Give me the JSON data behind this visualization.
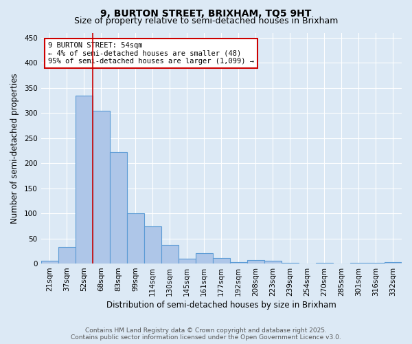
{
  "title_line1": "9, BURTON STREET, BRIXHAM, TQ5 9HT",
  "title_line2": "Size of property relative to semi-detached houses in Brixham",
  "xlabel": "Distribution of semi-detached houses by size in Brixham",
  "ylabel": "Number of semi-detached properties",
  "categories": [
    "21sqm",
    "37sqm",
    "52sqm",
    "68sqm",
    "83sqm",
    "99sqm",
    "114sqm",
    "130sqm",
    "145sqm",
    "161sqm",
    "177sqm",
    "192sqm",
    "208sqm",
    "223sqm",
    "239sqm",
    "254sqm",
    "270sqm",
    "285sqm",
    "301sqm",
    "316sqm",
    "332sqm"
  ],
  "values": [
    5,
    33,
    335,
    305,
    222,
    100,
    74,
    37,
    10,
    21,
    11,
    3,
    7,
    5,
    2,
    0,
    1,
    0,
    1,
    1,
    3
  ],
  "bar_color": "#aec6e8",
  "bar_edge_color": "#5b9bd5",
  "annotation_text": "9 BURTON STREET: 54sqm\n← 4% of semi-detached houses are smaller (48)\n95% of semi-detached houses are larger (1,099) →",
  "annotation_box_color": "#ffffff",
  "annotation_border_color": "#cc0000",
  "ylim": [
    0,
    460
  ],
  "yticks": [
    0,
    50,
    100,
    150,
    200,
    250,
    300,
    350,
    400,
    450
  ],
  "footer_line1": "Contains HM Land Registry data © Crown copyright and database right 2025.",
  "footer_line2": "Contains public sector information licensed under the Open Government Licence v3.0.",
  "background_color": "#dce9f5",
  "plot_bg_color": "#dce9f5",
  "title_fontsize": 10,
  "subtitle_fontsize": 9,
  "axis_label_fontsize": 8.5,
  "tick_fontsize": 7.5,
  "annotation_fontsize": 7.5,
  "footer_fontsize": 6.5,
  "red_line_x": 2.5
}
